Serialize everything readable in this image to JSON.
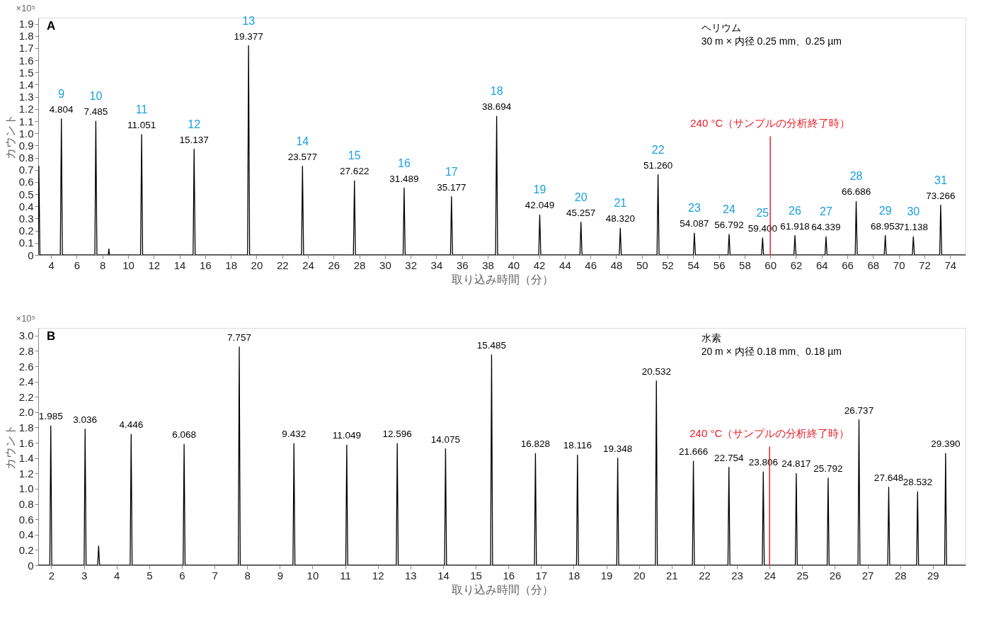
{
  "chart_data": [
    {
      "type": "line",
      "title": "A",
      "xlabel": "取り込み時間（分）",
      "ylabel": "カウント",
      "annotations": [
        "×10⁵",
        "ヘリウム",
        "30 m × 内径 0.25 mm、0.25 µm",
        {
          "text": "9",
          "x": 4.804,
          "y": 1.12
        },
        {
          "text": "4.804",
          "x": 4.804,
          "y": 1.12
        },
        {
          "text": "10",
          "x": 7.485,
          "y": 1.1
        },
        {
          "text": "7.485",
          "x": 7.485,
          "y": 1.1
        },
        {
          "text": "11",
          "x": 11.051,
          "y": 0.99
        },
        {
          "text": "11.051",
          "x": 11.051,
          "y": 0.99
        },
        {
          "text": "12",
          "x": 15.137,
          "y": 0.87
        },
        {
          "text": "15.137",
          "x": 15.137,
          "y": 0.87
        },
        {
          "text": "13",
          "x": 19.377,
          "y": 1.72
        },
        {
          "text": "19.377",
          "x": 19.377,
          "y": 1.72
        },
        {
          "text": "14",
          "x": 23.577,
          "y": 0.73
        },
        {
          "text": "23.577",
          "x": 23.577,
          "y": 0.73
        },
        {
          "text": "15",
          "x": 27.622,
          "y": 0.61
        },
        {
          "text": "27.622",
          "x": 27.622,
          "y": 0.61
        },
        {
          "text": "16",
          "x": 31.489,
          "y": 0.55
        },
        {
          "text": "31.489",
          "x": 31.489,
          "y": 0.55
        },
        {
          "text": "17",
          "x": 35.177,
          "y": 0.48
        },
        {
          "text": "35.177",
          "x": 35.177,
          "y": 0.48
        },
        {
          "text": "18",
          "x": 38.694,
          "y": 1.14
        },
        {
          "text": "38.694",
          "x": 38.694,
          "y": 1.14
        },
        {
          "text": "19",
          "x": 42.049,
          "y": 0.33
        },
        {
          "text": "42.049",
          "x": 42.049,
          "y": 0.33
        },
        {
          "text": "20",
          "x": 45.257,
          "y": 0.27
        },
        {
          "text": "45.257",
          "x": 45.257,
          "y": 0.27
        },
        {
          "text": "21",
          "x": 48.32,
          "y": 0.22
        },
        {
          "text": "48.320",
          "x": 48.32,
          "y": 0.22
        },
        {
          "text": "22",
          "x": 51.26,
          "y": 0.66
        },
        {
          "text": "51.260",
          "x": 51.26,
          "y": 0.66
        },
        {
          "text": "23",
          "x": 54.087,
          "y": 0.18
        },
        {
          "text": "54.087",
          "x": 54.087,
          "y": 0.18
        },
        {
          "text": "24",
          "x": 56.792,
          "y": 0.17
        },
        {
          "text": "56.792",
          "x": 56.792,
          "y": 0.17
        },
        {
          "text": "25",
          "x": 59.4,
          "y": 0.14
        },
        {
          "text": "59.400",
          "x": 59.4,
          "y": 0.14
        },
        {
          "text": "26",
          "x": 61.918,
          "y": 0.16
        },
        {
          "text": "61.918",
          "x": 61.918,
          "y": 0.16
        },
        {
          "text": "27",
          "x": 64.339,
          "y": 0.15
        },
        {
          "text": "64.339",
          "x": 64.339,
          "y": 0.15
        },
        {
          "text": "28",
          "x": 66.686,
          "y": 0.44
        },
        {
          "text": "66.686",
          "x": 66.686,
          "y": 0.44
        },
        {
          "text": "29",
          "x": 68.953,
          "y": 0.16
        },
        {
          "text": "68.953",
          "x": 68.953,
          "y": 0.16
        },
        {
          "text": "30",
          "x": 71.138,
          "y": 0.15
        },
        {
          "text": "71.138",
          "x": 71.138,
          "y": 0.15
        },
        {
          "text": "31",
          "x": 73.266,
          "y": 0.41
        },
        {
          "text": "73.266",
          "x": 73.266,
          "y": 0.41
        }
      ],
      "xlim": [
        3,
        75.2
      ],
      "xticks": [
        4,
        6,
        8,
        10,
        12,
        14,
        16,
        18,
        20,
        22,
        24,
        26,
        28,
        30,
        32,
        34,
        36,
        38,
        40,
        42,
        44,
        46,
        48,
        50,
        52,
        54,
        56,
        58,
        60,
        62,
        64,
        66,
        68,
        70,
        72,
        74
      ],
      "ylim": [
        0,
        1.95
      ],
      "yticks": [
        0,
        0.1,
        0.2,
        0.3,
        0.4,
        0.5,
        0.6,
        0.7,
        0.8,
        0.9,
        {
          "value": 1,
          "label": "1.0"
        },
        1.1,
        1.2,
        1.3,
        1.4,
        1.5,
        1.6,
        1.7,
        1.8,
        1.9
      ],
      "grid": false,
      "ref_lines": [
        {
          "axis": "x",
          "value": 60,
          "label": "240 °C（サンプルの分析終了時）",
          "color": "#e8202a"
        }
      ],
      "series": [
        {
          "color": "#000000",
          "x": [
            3.0,
            3.05,
            3.13,
            4.72,
            4.804,
            4.88,
            7.41,
            7.485,
            7.57,
            8.45,
            8.5,
            8.55,
            10.97,
            11.051,
            11.13,
            15.06,
            15.137,
            15.22,
            19.3,
            19.377,
            19.46,
            23.5,
            23.577,
            23.66,
            27.54,
            27.622,
            27.7,
            31.41,
            31.489,
            31.57,
            35.1,
            35.177,
            35.26,
            38.61,
            38.694,
            38.77,
            41.97,
            42.049,
            42.13,
            45.18,
            45.257,
            45.34,
            48.24,
            48.32,
            48.4,
            51.18,
            51.26,
            51.34,
            54.01,
            54.087,
            54.17,
            56.71,
            56.792,
            56.87,
            59.32,
            59.4,
            59.48,
            61.84,
            61.918,
            62.0,
            64.26,
            64.339,
            64.42,
            66.61,
            66.686,
            66.77,
            68.87,
            68.953,
            69.03,
            71.06,
            71.138,
            71.22,
            73.19,
            73.266,
            73.35,
            75.2
          ],
          "values": [
            0,
            0.73,
            0,
            0,
            1.12,
            0,
            0,
            1.1,
            0,
            0,
            0.05,
            0,
            0,
            0.99,
            0,
            0,
            0.87,
            0,
            0,
            1.72,
            0,
            0,
            0.73,
            0,
            0,
            0.61,
            0,
            0,
            0.55,
            0,
            0,
            0.48,
            0,
            0,
            1.14,
            0,
            0,
            0.33,
            0,
            0,
            0.27,
            0,
            0,
            0.22,
            0,
            0,
            0.66,
            0,
            0,
            0.18,
            0,
            0,
            0.17,
            0,
            0,
            0.14,
            0,
            0,
            0.16,
            0,
            0,
            0.15,
            0,
            0,
            0.44,
            0,
            0,
            0.16,
            0,
            0,
            0.15,
            0,
            0,
            0.41,
            0,
            0
          ]
        }
      ]
    },
    {
      "type": "line",
      "title": "B",
      "xlabel": "取り込み時間（分）",
      "ylabel": "カウント",
      "annotations": [
        "×10⁵",
        "水素",
        "20 m × 内径 0.18 mm、0.18 µm",
        {
          "text": "1.985",
          "x": 1.985,
          "y": 1.82
        },
        {
          "text": "3.036",
          "x": 3.036,
          "y": 1.78
        },
        {
          "text": "4.446",
          "x": 4.446,
          "y": 1.71
        },
        {
          "text": "6.068",
          "x": 6.068,
          "y": 1.58
        },
        {
          "text": "7.757",
          "x": 7.757,
          "y": 2.85
        },
        {
          "text": "9.432",
          "x": 9.432,
          "y": 1.59
        },
        {
          "text": "11.049",
          "x": 11.049,
          "y": 1.57
        },
        {
          "text": "12.596",
          "x": 12.596,
          "y": 1.59
        },
        {
          "text": "14.075",
          "x": 14.075,
          "y": 1.52
        },
        {
          "text": "15.485",
          "x": 15.485,
          "y": 2.75
        },
        {
          "text": "16.828",
          "x": 16.828,
          "y": 1.46
        },
        {
          "text": "18.116",
          "x": 18.116,
          "y": 1.44
        },
        {
          "text": "19.348",
          "x": 19.348,
          "y": 1.4
        },
        {
          "text": "20.532",
          "x": 20.532,
          "y": 2.41
        },
        {
          "text": "21.666",
          "x": 21.666,
          "y": 1.36
        },
        {
          "text": "22.754",
          "x": 22.754,
          "y": 1.28
        },
        {
          "text": "23.806",
          "x": 23.806,
          "y": 1.22
        },
        {
          "text": "24.817",
          "x": 24.817,
          "y": 1.2
        },
        {
          "text": "25.792",
          "x": 25.792,
          "y": 1.14
        },
        {
          "text": "26.737",
          "x": 26.737,
          "y": 1.9
        },
        {
          "text": "27.648",
          "x": 27.648,
          "y": 1.02
        },
        {
          "text": "28.532",
          "x": 28.532,
          "y": 0.96
        },
        {
          "text": "29.390",
          "x": 29.39,
          "y": 1.46
        }
      ],
      "xlim": [
        1.6,
        30.0
      ],
      "xticks": [
        2,
        3,
        4,
        5,
        6,
        7,
        8,
        9,
        10,
        11,
        12,
        13,
        14,
        15,
        16,
        17,
        18,
        19,
        20,
        21,
        22,
        23,
        24,
        25,
        26,
        27,
        28,
        29
      ],
      "ylim": [
        0,
        3.1
      ],
      "yticks": [
        0,
        0.2,
        0.4,
        0.6,
        0.8,
        {
          "value": 1,
          "label": "1.0"
        },
        1.2,
        1.4,
        1.6,
        1.8,
        {
          "value": 2,
          "label": "2.0"
        },
        2.2,
        2.4,
        2.6,
        2.8,
        {
          "value": 3,
          "label": "3.0"
        }
      ],
      "grid": false,
      "ref_lines": [
        {
          "axis": "x",
          "value": 24,
          "label": "240 °C（サンプルの分析終了時）",
          "color": "#e8202a"
        }
      ],
      "series": [
        {
          "color": "#000000",
          "x": [
            1.6,
            1.955,
            1.985,
            2.015,
            3.006,
            3.036,
            3.066,
            3.42,
            3.45,
            3.48,
            4.416,
            4.446,
            4.476,
            6.038,
            6.068,
            6.098,
            7.727,
            7.757,
            7.787,
            9.402,
            9.432,
            9.462,
            11.019,
            11.049,
            11.079,
            12.566,
            12.596,
            12.626,
            14.045,
            14.075,
            14.105,
            15.455,
            15.485,
            15.515,
            16.798,
            16.828,
            16.858,
            18.086,
            18.116,
            18.146,
            19.318,
            19.348,
            19.378,
            20.502,
            20.532,
            20.562,
            21.636,
            21.666,
            21.696,
            22.724,
            22.754,
            22.784,
            23.776,
            23.806,
            23.836,
            24.787,
            24.817,
            24.847,
            25.762,
            25.792,
            25.822,
            26.707,
            26.737,
            26.767,
            27.618,
            27.648,
            27.678,
            28.502,
            28.532,
            28.562,
            29.36,
            29.39,
            29.42,
            30.0
          ],
          "values": [
            0,
            0,
            1.82,
            0,
            0,
            1.78,
            0,
            0,
            0.25,
            0,
            0,
            1.71,
            0,
            0,
            1.58,
            0,
            0,
            2.85,
            0,
            0,
            1.59,
            0,
            0,
            1.57,
            0,
            0,
            1.59,
            0,
            0,
            1.52,
            0,
            0,
            2.75,
            0,
            0,
            1.46,
            0,
            0,
            1.44,
            0,
            0,
            1.4,
            0,
            0,
            2.41,
            0,
            0,
            1.36,
            0,
            0,
            1.28,
            0,
            0,
            1.22,
            0,
            0,
            1.2,
            0,
            0,
            1.14,
            0,
            0,
            1.9,
            0,
            0,
            1.02,
            0,
            0,
            0.96,
            0,
            0,
            1.46,
            0,
            0
          ]
        }
      ]
    }
  ]
}
